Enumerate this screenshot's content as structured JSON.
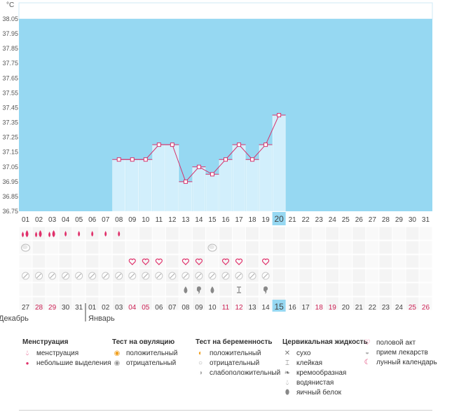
{
  "chart_data": {
    "type": "bar",
    "unit": "°C",
    "ylim": [
      36.75,
      38.05
    ],
    "y_ticks": [
      "38.05",
      "37.95",
      "37.85",
      "37.75",
      "37.65",
      "37.55",
      "37.45",
      "37.35",
      "37.25",
      "37.15",
      "37.05",
      "36.95",
      "36.85",
      "36.75"
    ],
    "x_labels": [
      "01",
      "02",
      "03",
      "04",
      "05",
      "06",
      "07",
      "08",
      "09",
      "10",
      "11",
      "12",
      "13",
      "14",
      "15",
      "16",
      "17",
      "18",
      "19",
      "20",
      "21",
      "22",
      "23",
      "24",
      "25",
      "26",
      "27",
      "28",
      "29",
      "30",
      "31"
    ],
    "highlight_day_index": 19,
    "temperatures": [
      null,
      null,
      null,
      null,
      null,
      null,
      null,
      37.1,
      37.1,
      37.1,
      37.2,
      37.2,
      36.95,
      37.05,
      37.0,
      37.1,
      37.2,
      37.1,
      37.2,
      37.4,
      null,
      null,
      null,
      null,
      null,
      null,
      null,
      null,
      null,
      null,
      null
    ],
    "colors": {
      "background": "#96d8f2",
      "bar": "#d2effc",
      "line": "#d6336c",
      "highlight": "#96d8f2",
      "red_date": "#cc2255"
    }
  },
  "rows": {
    "menstruation": [
      "heavy",
      "heavy",
      "heavy",
      "light",
      "light",
      "light",
      "light",
      "light",
      "",
      "",
      "",
      "",
      "",
      "",
      "",
      "",
      "",
      "",
      "",
      "",
      "",
      "",
      "",
      "",
      "",
      "",
      "",
      "",
      "",
      "",
      ""
    ],
    "ovulation_test": [
      "negative",
      "",
      "",
      "",
      "",
      "",
      "",
      "",
      "",
      "",
      "",
      "",
      "",
      "",
      "negative",
      "",
      "",
      "",
      "",
      "",
      "",
      "",
      "",
      "",
      "",
      "",
      "",
      "",
      "",
      "",
      ""
    ],
    "intercourse": [
      "",
      "",
      "",
      "",
      "",
      "",
      "",
      "",
      "heart",
      "heart",
      "heart",
      "",
      "heart",
      "heart",
      "",
      "heart",
      "heart",
      "",
      "heart",
      "",
      "",
      "",
      "",
      "",
      "",
      "",
      "",
      "",
      "",
      "",
      ""
    ],
    "medication": [
      "pill",
      "pill",
      "pill",
      "pill",
      "pill",
      "pill",
      "pill",
      "pill",
      "pill",
      "pill",
      "pill",
      "pill",
      "pill",
      "pill",
      "pill",
      "pill",
      "pill",
      "pill",
      "pill",
      "",
      "",
      "",
      "",
      "",
      "",
      "",
      "",
      "",
      "",
      "",
      ""
    ],
    "cervical_fluid": [
      "",
      "",
      "",
      "",
      "",
      "",
      "",
      "",
      "",
      "",
      "",
      "",
      "watery",
      "creamy",
      "watery",
      "",
      "sticky",
      "",
      "creamy",
      "",
      "",
      "",
      "",
      "",
      "",
      "",
      "",
      "",
      "",
      "",
      ""
    ]
  },
  "cycle_days": [
    "27",
    "28",
    "29",
    "30",
    "31",
    "01",
    "02",
    "03",
    "04",
    "05",
    "06",
    "07",
    "08",
    "09",
    "10",
    "11",
    "12",
    "13",
    "14",
    "15",
    "16",
    "17",
    "18",
    "19",
    "20",
    "21",
    "22",
    "23",
    "24",
    "25",
    "26"
  ],
  "cycle_day_red": [
    false,
    true,
    true,
    false,
    false,
    false,
    false,
    false,
    true,
    true,
    false,
    false,
    false,
    false,
    false,
    true,
    true,
    false,
    false,
    false,
    false,
    false,
    true,
    true,
    false,
    false,
    false,
    false,
    false,
    true,
    true
  ],
  "cycle_highlight_index": 19,
  "months": {
    "december": "Декабрь",
    "january": "Январь"
  },
  "legend": {
    "menstruation": {
      "title": "Менструация",
      "items": [
        "менструация",
        "небольшие выделения"
      ]
    },
    "ovulation": {
      "title": "Тест на овуляцию",
      "items": [
        "положительный",
        "отрицательный"
      ]
    },
    "pregnancy": {
      "title": "Тест на беременность",
      "items": [
        "положительный",
        "отрицательный",
        "слабоположительный"
      ]
    },
    "cervical": {
      "title": "Цервикальная жидкость",
      "items": [
        "сухо",
        "клейкая",
        "кремообразная",
        "водянистая",
        "яичный белок"
      ]
    },
    "other": {
      "items": [
        "половой акт",
        "прием лекарств",
        "лунный календарь"
      ]
    }
  }
}
